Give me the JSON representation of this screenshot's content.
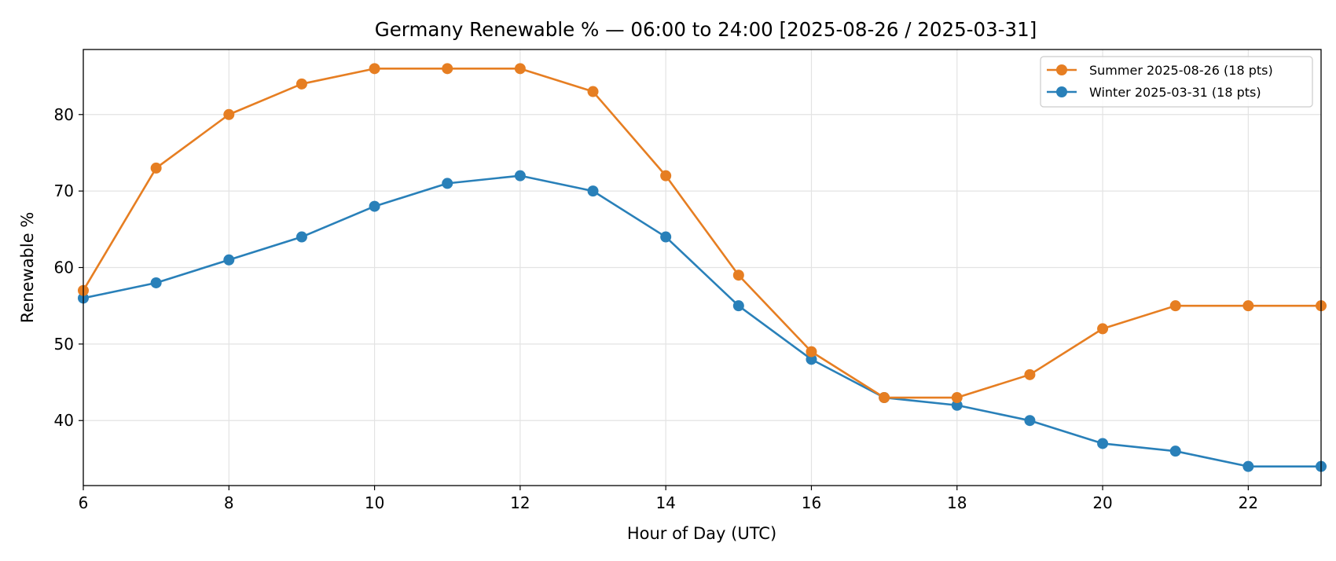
{
  "chart_data": {
    "type": "line",
    "title": "Germany Renewable % — 06:00 to 24:00  [2025-08-26 / 2025-03-31]",
    "xlabel": "Hour of Day (UTC)",
    "ylabel": "Renewable %",
    "x": [
      6,
      7,
      8,
      9,
      10,
      11,
      12,
      13,
      14,
      15,
      16,
      17,
      18,
      19,
      20,
      21,
      22,
      23
    ],
    "xlim": [
      6,
      23
    ],
    "ylim": [
      31.5,
      88.5
    ],
    "xticks": [
      6,
      8,
      10,
      12,
      14,
      16,
      18,
      20,
      22
    ],
    "yticks": [
      40,
      50,
      60,
      70,
      80
    ],
    "grid": true,
    "legend_position": "top-right",
    "series": [
      {
        "name": "Summer 2025-08-26 (18 pts)",
        "color": "#e67e22",
        "marker": "circle",
        "values": [
          57,
          73,
          80,
          84,
          86,
          86,
          86,
          83,
          72,
          59,
          49,
          43,
          43,
          46,
          52,
          55,
          55,
          55
        ]
      },
      {
        "name": "Winter 2025-03-31 (18 pts)",
        "color": "#2980b9",
        "marker": "circle",
        "values": [
          56,
          58,
          61,
          64,
          68,
          71,
          72,
          70,
          64,
          55,
          48,
          43,
          42,
          40,
          37,
          36,
          34,
          34
        ]
      }
    ]
  }
}
